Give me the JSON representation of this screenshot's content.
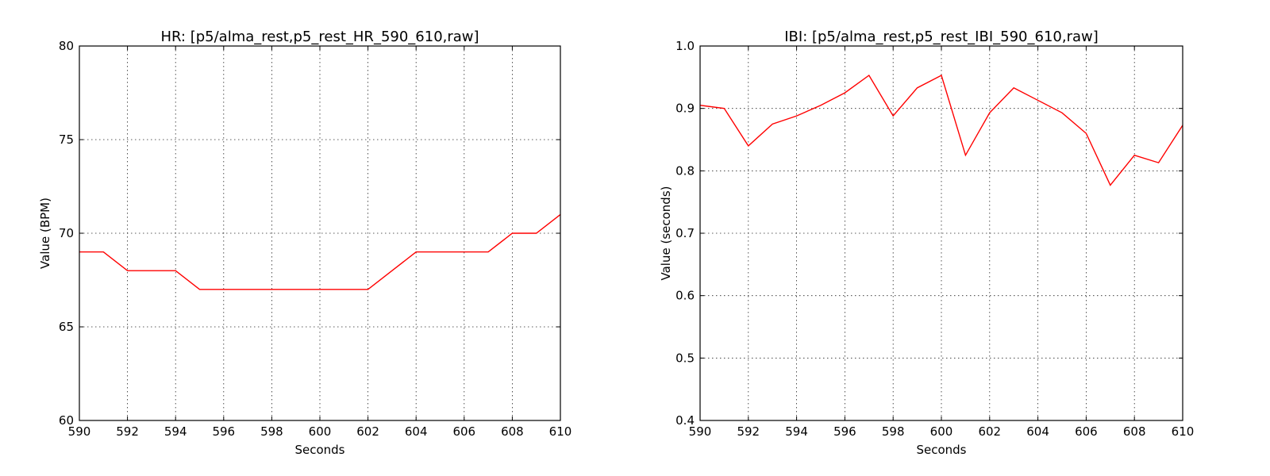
{
  "chart_data": [
    {
      "type": "line",
      "title": "HR: [p5/alma_rest,p5_rest_HR_590_610,raw]",
      "xlabel": "Seconds",
      "ylabel": "Value (BPM)",
      "xlim": [
        590,
        610
      ],
      "ylim": [
        60,
        80
      ],
      "xticks": [
        590,
        592,
        594,
        596,
        598,
        600,
        602,
        604,
        606,
        608,
        610
      ],
      "yticks": [
        60,
        65,
        70,
        75,
        80
      ],
      "ytick_labels": [
        "60",
        "65",
        "70",
        "75",
        "80"
      ],
      "grid": true,
      "series": [
        {
          "color": "#ff0000",
          "x": [
            590,
            591,
            592,
            593,
            594,
            595,
            596,
            597,
            598,
            599,
            600,
            601,
            602,
            603,
            604,
            605,
            606,
            607,
            608,
            609,
            610
          ],
          "y": [
            69,
            69,
            68,
            68,
            68,
            67,
            67,
            67,
            67,
            67,
            67,
            67,
            67,
            68,
            69,
            69,
            69,
            69,
            70,
            70,
            71
          ]
        }
      ]
    },
    {
      "type": "line",
      "title": "IBI: [p5/alma_rest,p5_rest_IBI_590_610,raw]",
      "xlabel": "Seconds",
      "ylabel": "Value (seconds)",
      "xlim": [
        590,
        610
      ],
      "ylim": [
        0.4,
        1.0
      ],
      "xticks": [
        590,
        592,
        594,
        596,
        598,
        600,
        602,
        604,
        606,
        608,
        610
      ],
      "yticks": [
        0.4,
        0.5,
        0.6,
        0.7,
        0.8,
        0.9,
        1.0
      ],
      "ytick_labels": [
        "0.4",
        "0.5",
        "0.6",
        "0.7",
        "0.8",
        "0.9",
        "1.0"
      ],
      "grid": true,
      "series": [
        {
          "color": "#ff0000",
          "x": [
            590,
            591,
            592,
            593,
            594,
            595,
            596,
            597,
            598,
            599,
            600,
            601,
            602,
            603,
            604,
            605,
            606,
            607,
            608,
            609,
            610
          ],
          "y": [
            0.905,
            0.9,
            0.84,
            0.875,
            0.888,
            0.905,
            0.925,
            0.953,
            0.888,
            0.933,
            0.953,
            0.825,
            0.893,
            0.933,
            0.913,
            0.893,
            0.86,
            0.777,
            0.825,
            0.813,
            0.873
          ]
        }
      ]
    }
  ]
}
